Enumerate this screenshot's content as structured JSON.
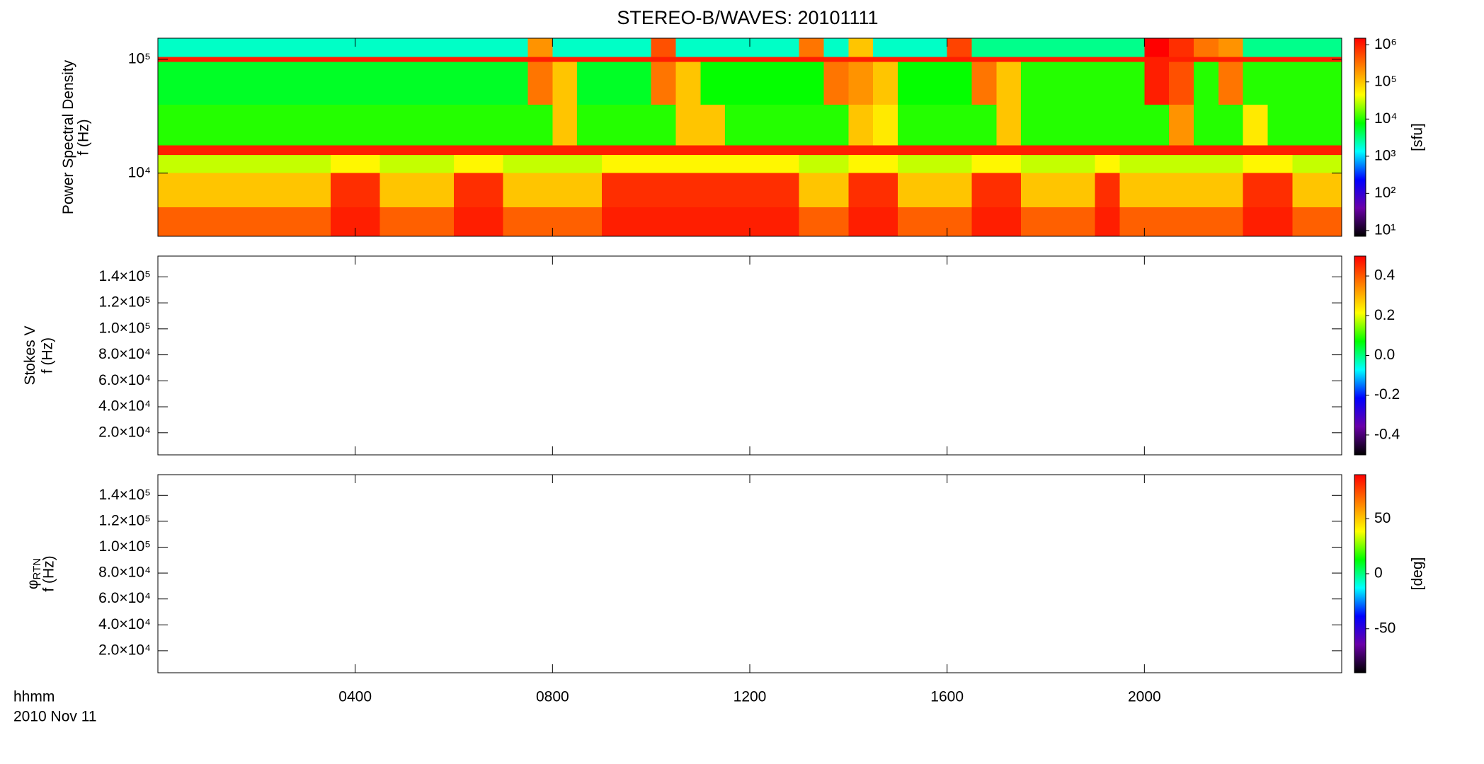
{
  "title": "STEREO-B/WAVES: 20101111",
  "xlabel": "hhmm",
  "date": "2010 Nov 11",
  "colorscale": [
    "#000000",
    "#6a00a8",
    "#0000ff",
    "#00ffff",
    "#00ff00",
    "#ffff00",
    "#ff8000",
    "#ff0000"
  ],
  "chart_data": [
    {
      "type": "heatmap",
      "ylabel": [
        "Power Spectral Density",
        "f (Hz)"
      ],
      "xlim": [
        0,
        24
      ],
      "xticks": [
        {
          "value": 4,
          "label": "0400"
        },
        {
          "value": 8,
          "label": "0800"
        },
        {
          "value": 12,
          "label": "1200"
        },
        {
          "value": 16,
          "label": "1600"
        },
        {
          "value": 20,
          "label": "2000"
        }
      ],
      "ylim": [
        2790,
        153000
      ],
      "yscale": "log",
      "yticks": [
        {
          "value": 10000,
          "label": "10⁴"
        },
        {
          "value": 100000,
          "label": "10⁵"
        }
      ],
      "zlim": [
        7,
        1500000
      ],
      "zscale": "log",
      "zticks": [
        {
          "value": 10,
          "label": "10¹"
        },
        {
          "value": 100,
          "label": "10²"
        },
        {
          "value": 1000,
          "label": "10³"
        },
        {
          "value": 10000,
          "label": "10⁴"
        },
        {
          "value": 100000,
          "label": "10⁵"
        },
        {
          "value": 1000000,
          "label": "10⁶"
        }
      ],
      "zlabel": "[sfu]",
      "x_bins": [
        0,
        0.5,
        1,
        1.5,
        2,
        2.5,
        3,
        3.5,
        4,
        4.5,
        5,
        5.5,
        6,
        6.5,
        7,
        7.5,
        8,
        8.5,
        9,
        9.5,
        10,
        10.5,
        11,
        11.5,
        12,
        12.5,
        13,
        13.5,
        14,
        14.5,
        15,
        15.5,
        16,
        16.5,
        17,
        17.5,
        18,
        18.5,
        19,
        19.5,
        20,
        20.5,
        21,
        21.5,
        22,
        22.5,
        23,
        23.5,
        24
      ],
      "y_bins": [
        2790,
        5000,
        10000,
        14500,
        17500,
        40000,
        95000,
        105000,
        153000
      ],
      "z": [
        [
          400000,
          400000,
          400000,
          400000,
          400000,
          400000,
          400000,
          1000000,
          1000000,
          400000,
          400000,
          400000,
          1000000,
          1000000,
          400000,
          400000,
          400000,
          400000,
          1000000,
          1000000,
          1000000,
          1000000,
          1000000,
          1000000,
          1000000,
          1000000,
          400000,
          400000,
          1000000,
          1000000,
          400000,
          400000,
          400000,
          1000000,
          1000000,
          400000,
          400000,
          400000,
          1000000,
          400000,
          400000,
          400000,
          400000,
          400000,
          1000000,
          1000000,
          400000,
          400000
        ],
        [
          100000,
          100000,
          100000,
          100000,
          100000,
          100000,
          100000,
          800000,
          800000,
          100000,
          100000,
          100000,
          800000,
          800000,
          100000,
          100000,
          100000,
          100000,
          800000,
          800000,
          800000,
          800000,
          800000,
          800000,
          800000,
          800000,
          100000,
          100000,
          800000,
          800000,
          100000,
          100000,
          100000,
          800000,
          800000,
          100000,
          100000,
          100000,
          800000,
          100000,
          100000,
          100000,
          100000,
          100000,
          800000,
          800000,
          100000,
          100000
        ],
        [
          30000,
          30000,
          30000,
          30000,
          30000,
          30000,
          30000,
          50000,
          50000,
          30000,
          30000,
          30000,
          50000,
          50000,
          30000,
          30000,
          30000,
          30000,
          50000,
          50000,
          50000,
          50000,
          50000,
          50000,
          50000,
          50000,
          30000,
          30000,
          50000,
          50000,
          30000,
          30000,
          30000,
          50000,
          50000,
          30000,
          30000,
          30000,
          50000,
          30000,
          30000,
          30000,
          30000,
          30000,
          50000,
          50000,
          30000,
          30000
        ],
        [
          1000000,
          1000000,
          1000000,
          1000000,
          1000000,
          1000000,
          1000000,
          1000000,
          1000000,
          1000000,
          1000000,
          1000000,
          1000000,
          1000000,
          1000000,
          1000000,
          1000000,
          1000000,
          1000000,
          1000000,
          1000000,
          1000000,
          1000000,
          1000000,
          1000000,
          1000000,
          1000000,
          1000000,
          1000000,
          1000000,
          1000000,
          1000000,
          1000000,
          1000000,
          1000000,
          1000000,
          1000000,
          1000000,
          1000000,
          1000000,
          1000000,
          1000000,
          1000000,
          1000000,
          1000000,
          1000000,
          1000000,
          1000000
        ],
        [
          10000,
          10000,
          10000,
          10000,
          10000,
          10000,
          10000,
          10000,
          10000,
          10000,
          10000,
          10000,
          10000,
          10000,
          10000,
          10000,
          100000,
          10000,
          10000,
          10000,
          10000,
          100000,
          100000,
          10000,
          10000,
          10000,
          10000,
          10000,
          100000,
          60000,
          10000,
          10000,
          10000,
          10000,
          100000,
          10000,
          10000,
          10000,
          10000,
          10000,
          10000,
          200000,
          10000,
          10000,
          60000,
          10000,
          10000,
          10000
        ],
        [
          6000,
          6000,
          6000,
          6000,
          6000,
          6000,
          6000,
          6000,
          6000,
          6000,
          6000,
          6000,
          6000,
          6000,
          6000,
          300000,
          100000,
          6000,
          6000,
          6000,
          300000,
          100000,
          8000,
          8000,
          8000,
          8000,
          8000,
          300000,
          200000,
          100000,
          8000,
          8000,
          8000,
          300000,
          100000,
          10000,
          10000,
          10000,
          10000,
          10000,
          1000000,
          500000,
          10000,
          300000,
          10000,
          10000,
          10000,
          10000
        ],
        [
          1000000,
          1000000,
          1000000,
          1000000,
          1000000,
          1000000,
          1000000,
          1000000,
          1000000,
          1000000,
          1000000,
          1000000,
          1000000,
          1000000,
          1000000,
          1000000,
          1000000,
          1000000,
          1000000,
          1000000,
          1000000,
          1000000,
          1000000,
          1000000,
          1000000,
          1000000,
          1000000,
          1000000,
          1000000,
          1000000,
          1000000,
          1000000,
          1000000,
          1000000,
          1000000,
          1000000,
          1000000,
          1000000,
          1000000,
          1000000,
          1000000,
          1000000,
          1000000,
          1000000,
          1000000,
          1000000,
          1000000,
          1000000
        ],
        [
          2000,
          2000,
          2000,
          2000,
          2000,
          2000,
          2000,
          2000,
          2000,
          2000,
          2000,
          2000,
          2000,
          2000,
          2000,
          200000,
          2000,
          2000,
          2000,
          2000,
          500000,
          2000,
          2000,
          2000,
          2000,
          2000,
          300000,
          2000,
          100000,
          2000,
          2000,
          2000,
          600000,
          3000,
          3000,
          3000,
          3000,
          3000,
          3000,
          3000,
          1500000,
          800000,
          300000,
          200000,
          3000,
          3000,
          3000,
          3000
        ]
      ]
    },
    {
      "type": "heatmap",
      "ylabel": [
        "Stokes V",
        "f (Hz)"
      ],
      "xlim": [
        0,
        24
      ],
      "xticks": [
        {
          "value": 4,
          "label": "0400"
        },
        {
          "value": 8,
          "label": "0800"
        },
        {
          "value": 12,
          "label": "1200"
        },
        {
          "value": 16,
          "label": "1600"
        },
        {
          "value": 20,
          "label": "2000"
        }
      ],
      "ylim": [
        3000,
        156000
      ],
      "yscale": "linear",
      "yticks": [
        {
          "value": 20000,
          "label": "2.0×10⁴"
        },
        {
          "value": 40000,
          "label": "4.0×10⁴"
        },
        {
          "value": 60000,
          "label": "6.0×10⁴"
        },
        {
          "value": 80000,
          "label": "8.0×10⁴"
        },
        {
          "value": 100000,
          "label": "1.0×10⁵"
        },
        {
          "value": 120000,
          "label": "1.2×10⁵"
        },
        {
          "value": 140000,
          "label": "1.4×10⁵"
        }
      ],
      "zlim": [
        -0.5,
        0.5
      ],
      "zscale": "linear",
      "zticks": [
        -0.4,
        -0.2,
        {
          "value": 0,
          "label": "0.0"
        },
        0.2,
        0.4
      ]
    },
    {
      "type": "heatmap",
      "ylabel": [
        "φ",
        "f (Hz)"
      ],
      "ylabel_sub": "RTN",
      "xlim": [
        0,
        24
      ],
      "xticks": [
        {
          "value": 4,
          "label": "0400"
        },
        {
          "value": 8,
          "label": "0800"
        },
        {
          "value": 12,
          "label": "1200"
        },
        {
          "value": 16,
          "label": "1600"
        },
        {
          "value": 20,
          "label": "2000"
        }
      ],
      "ylim": [
        3000,
        156000
      ],
      "yscale": "linear",
      "yticks": [
        {
          "value": 20000,
          "label": "2.0×10⁴"
        },
        {
          "value": 40000,
          "label": "4.0×10⁴"
        },
        {
          "value": 60000,
          "label": "6.0×10⁴"
        },
        {
          "value": 80000,
          "label": "8.0×10⁴"
        },
        {
          "value": 100000,
          "label": "1.0×10⁵"
        },
        {
          "value": 120000,
          "label": "1.2×10⁵"
        },
        {
          "value": 140000,
          "label": "1.4×10⁵"
        }
      ],
      "zlim": [
        -90,
        90
      ],
      "zscale": "linear",
      "zticks": [
        -50,
        0,
        50
      ],
      "zlabel": "[deg]"
    }
  ]
}
